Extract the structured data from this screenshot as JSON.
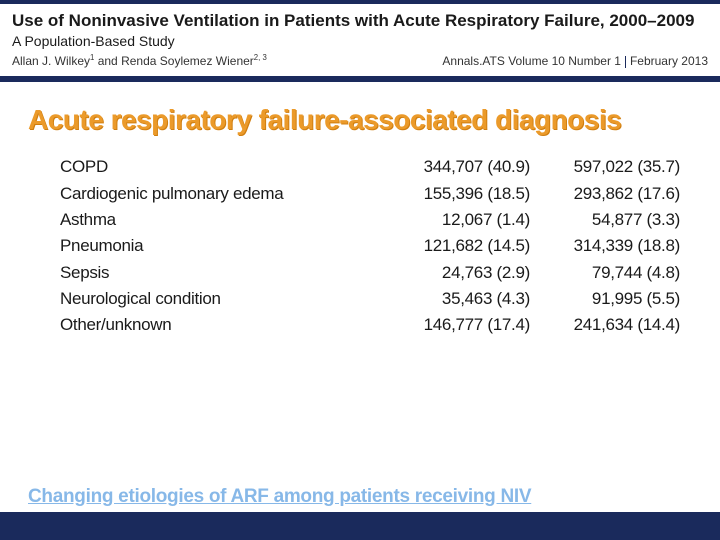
{
  "header": {
    "title": "Use of Noninvasive Ventilation in Patients with Acute Respiratory Failure, 2000–2009",
    "subtitle": "A Population-Based Study",
    "authors_html": "Allan J. Wilkey¹ and Renda Soylemez Wiener²·³",
    "journal_name": "Annals.ATS Volume 10 Number 1",
    "journal_date": "February 2013"
  },
  "section": {
    "title": "Acute respiratory failure-associated diagnosis"
  },
  "table": {
    "rows": [
      {
        "label": "COPD",
        "v1": "344,707 (40.9)",
        "v2": "597,022 (35.7)"
      },
      {
        "label": "Cardiogenic pulmonary edema",
        "v1": "155,396 (18.5)",
        "v2": "293,862 (17.6)"
      },
      {
        "label": "Asthma",
        "v1": "12,067 (1.4)",
        "v2": "54,877 (3.3)"
      },
      {
        "label": "Pneumonia",
        "v1": "121,682 (14.5)",
        "v2": "314,339 (18.8)"
      },
      {
        "label": "Sepsis",
        "v1": "24,763 (2.9)",
        "v2": "79,744 (4.8)"
      },
      {
        "label": "Neurological condition",
        "v1": "35,463 (4.3)",
        "v2": "91,995 (5.5)"
      },
      {
        "label": "Other/unknown",
        "v1": "146,777 (17.4)",
        "v2": "241,634 (14.4)"
      }
    ]
  },
  "footer": {
    "text": "Changing etiologies of ARF among patients receiving NIV"
  },
  "colors": {
    "navy": "#1a2a5c",
    "orange": "#eb9a2a",
    "lightblue": "#87b8e8",
    "text": "#1a1a1a",
    "bg": "#ffffff"
  },
  "fonts": {
    "title_size_pt": 17,
    "section_size_pt": 28,
    "row_size_pt": 17,
    "footer_size_pt": 19
  }
}
